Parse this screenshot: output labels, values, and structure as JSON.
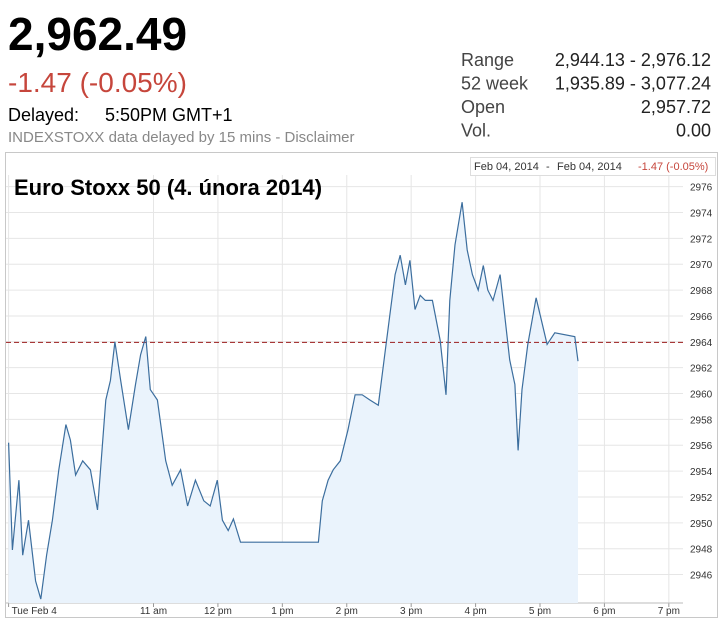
{
  "header": {
    "price": "2,962.49",
    "change": "-1.47 (-0.05%)",
    "delayed_label": "Delayed:",
    "delayed_time": "5:50PM GMT+1",
    "source_note": "INDEXSTOXX data delayed by 15 mins - Disclaimer"
  },
  "stats": {
    "rows": [
      [
        "Range",
        "2,944.13 - 2,976.12"
      ],
      [
        "52 week",
        "1,935.89 - 3,077.24"
      ],
      [
        "Open",
        "2,957.72"
      ],
      [
        "Vol.",
        "0.00"
      ]
    ]
  },
  "chart_data": {
    "type": "line",
    "title": "Euro Stoxx 50 (4. února 2014)",
    "range_start": "Feb 04, 2014",
    "range_separator": "-",
    "range_end": "Feb 04, 2014",
    "range_change": "-1.47 (-0.05%)",
    "x": [
      8.75,
      8.81,
      8.91,
      8.97,
      9.06,
      9.17,
      9.25,
      9.34,
      9.43,
      9.53,
      9.64,
      9.71,
      9.79,
      9.9,
      10.02,
      10.13,
      10.26,
      10.33,
      10.4,
      10.49,
      10.61,
      10.72,
      10.8,
      10.88,
      10.95,
      11.06,
      11.19,
      11.29,
      11.42,
      11.53,
      11.65,
      11.78,
      11.88,
      11.99,
      12.07,
      12.16,
      12.24,
      12.35,
      12.66,
      13.12,
      13.56,
      13.62,
      13.71,
      13.79,
      13.9,
      14.02,
      14.13,
      14.24,
      14.36,
      14.49,
      14.6,
      14.67,
      14.75,
      14.83,
      14.91,
      14.98,
      15.06,
      15.14,
      15.22,
      15.33,
      15.45,
      15.54,
      15.6,
      15.68,
      15.79,
      15.87,
      15.95,
      16.04,
      16.12,
      16.19,
      16.27,
      16.38,
      16.46,
      16.53,
      16.61,
      16.66,
      16.72,
      16.81,
      16.94,
      17.02,
      17.11,
      17.23,
      17.54,
      17.59
    ],
    "series": [
      {
        "name": "Euro Stoxx 50",
        "color": "#3c6e9e",
        "fill": "#eaf3fc",
        "values": [
          2956.2,
          2947.9,
          2953.3,
          2947.5,
          2950.2,
          2945.5,
          2944.1,
          2947.5,
          2950.2,
          2954.1,
          2957.6,
          2956.4,
          2953.7,
          2954.8,
          2954.1,
          2951.0,
          2959.5,
          2961.0,
          2964.0,
          2961.0,
          2957.2,
          2960.7,
          2963.0,
          2964.4,
          2960.3,
          2959.5,
          2954.8,
          2952.9,
          2954.1,
          2951.3,
          2953.3,
          2951.7,
          2951.3,
          2953.3,
          2950.2,
          2949.4,
          2950.3,
          2948.5,
          2948.5,
          2948.5,
          2948.5,
          2951.7,
          2953.3,
          2954.1,
          2954.8,
          2957.2,
          2959.9,
          2959.9,
          2959.5,
          2959.1,
          2963.4,
          2966.1,
          2969.2,
          2970.7,
          2968.4,
          2970.3,
          2966.5,
          2967.6,
          2967.2,
          2967.2,
          2964.1,
          2959.9,
          2967.2,
          2971.5,
          2974.8,
          2971.1,
          2969.2,
          2968.0,
          2969.9,
          2968.0,
          2967.2,
          2969.2,
          2965.7,
          2962.6,
          2960.7,
          2955.6,
          2960.3,
          2963.8,
          2967.4,
          2965.7,
          2963.8,
          2964.7,
          2964.4,
          2962.5
        ]
      }
    ],
    "previous_close": 2963.96,
    "previous_close_color": "#9b1c1c",
    "xlim": [
      8.71,
      19.22
    ],
    "ylim": [
      2943.8,
      2976.9
    ],
    "xticks": [
      {
        "value": 8.75,
        "label": "Tue Feb 4"
      },
      {
        "value": 11,
        "label": "11 am"
      },
      {
        "value": 12,
        "label": "12 pm"
      },
      {
        "value": 13,
        "label": "1 pm"
      },
      {
        "value": 14,
        "label": "2 pm"
      },
      {
        "value": 15,
        "label": "3 pm"
      },
      {
        "value": 16,
        "label": "4 pm"
      },
      {
        "value": 17,
        "label": "5 pm"
      },
      {
        "value": 18,
        "label": "6 pm"
      },
      {
        "value": 19,
        "label": "7 pm"
      }
    ],
    "yticks": [
      2946,
      2948,
      2950,
      2952,
      2954,
      2956,
      2958,
      2960,
      2962,
      2964,
      2966,
      2968,
      2970,
      2972,
      2974,
      2976
    ],
    "grid": true
  }
}
